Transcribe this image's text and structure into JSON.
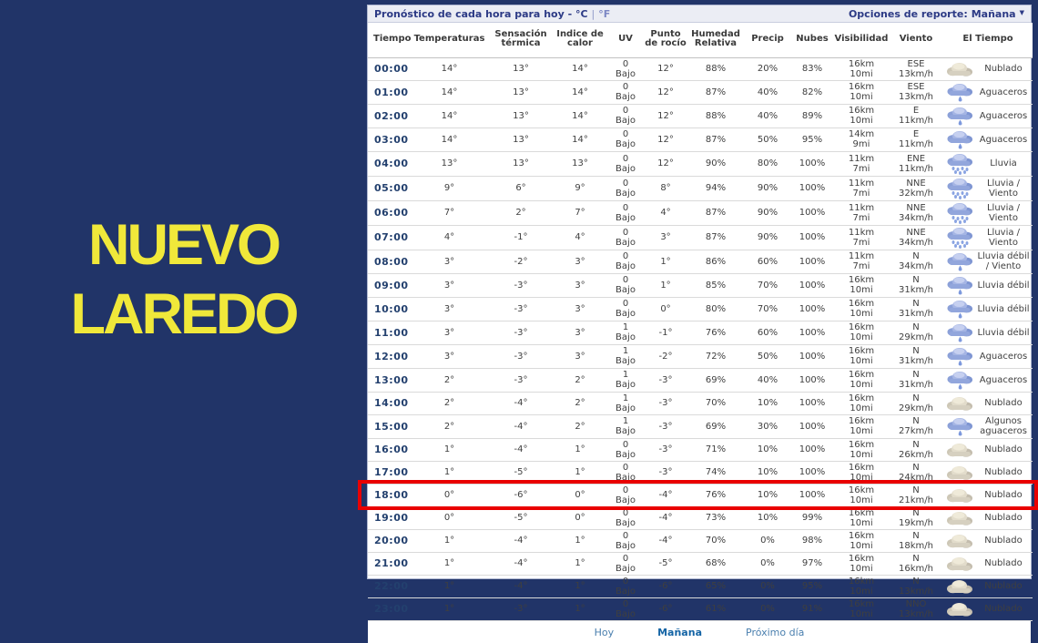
{
  "colors": {
    "background": "#213468",
    "city_text": "#f0e83a",
    "highlight": "#e90000"
  },
  "city": {
    "line1": "NUEVO",
    "line2": "LAREDO"
  },
  "panel": {
    "title": "Pronóstico de cada hora para hoy - °C",
    "unit_sep": "|",
    "unit_f": "°F",
    "report_options_label": "Opciones de reporte:",
    "report_options_value": "Mañana",
    "caret": "▼"
  },
  "table": {
    "columns": [
      "Tiempo",
      "Temperaturas",
      "Sensación térmica",
      "Indice de calor",
      "UV",
      "Punto de rocío",
      "Humedad Relativa",
      "Precip",
      "Nubes",
      "Visibilidad",
      "Viento",
      "El Tiempo"
    ],
    "rows": [
      {
        "time": "00:00",
        "temp": "14°",
        "feels": "13°",
        "heat_index": "14°",
        "uv": "0",
        "uv_level": "Bajo",
        "dew_point": "12°",
        "humidity": "88%",
        "precip": "20%",
        "clouds": "83%",
        "visibility_km": "16km",
        "visibility_mi": "10mi",
        "wind_dir": "ESE",
        "wind_speed": "13km/h",
        "icon": "cloudy-icon",
        "condition": "Nublado",
        "highlighted": false
      },
      {
        "time": "01:00",
        "temp": "14°",
        "feels": "13°",
        "heat_index": "14°",
        "uv": "0",
        "uv_level": "Bajo",
        "dew_point": "12°",
        "humidity": "87%",
        "precip": "40%",
        "clouds": "82%",
        "visibility_km": "16km",
        "visibility_mi": "10mi",
        "wind_dir": "ESE",
        "wind_speed": "13km/h",
        "icon": "rain-icon",
        "condition": "Aguaceros",
        "highlighted": false
      },
      {
        "time": "02:00",
        "temp": "14°",
        "feels": "13°",
        "heat_index": "14°",
        "uv": "0",
        "uv_level": "Bajo",
        "dew_point": "12°",
        "humidity": "88%",
        "precip": "40%",
        "clouds": "89%",
        "visibility_km": "16km",
        "visibility_mi": "10mi",
        "wind_dir": "E",
        "wind_speed": "11km/h",
        "icon": "rain-icon",
        "condition": "Aguaceros",
        "highlighted": false
      },
      {
        "time": "03:00",
        "temp": "14°",
        "feels": "13°",
        "heat_index": "14°",
        "uv": "0",
        "uv_level": "Bajo",
        "dew_point": "12°",
        "humidity": "87%",
        "precip": "50%",
        "clouds": "95%",
        "visibility_km": "14km",
        "visibility_mi": "9mi",
        "wind_dir": "E",
        "wind_speed": "11km/h",
        "icon": "rain-icon",
        "condition": "Aguaceros",
        "highlighted": false
      },
      {
        "time": "04:00",
        "temp": "13°",
        "feels": "13°",
        "heat_index": "13°",
        "uv": "0",
        "uv_level": "Bajo",
        "dew_point": "12°",
        "humidity": "90%",
        "precip": "80%",
        "clouds": "100%",
        "visibility_km": "11km",
        "visibility_mi": "7mi",
        "wind_dir": "ENE",
        "wind_speed": "11km/h",
        "icon": "heavy-rain-icon",
        "condition": "Lluvia",
        "highlighted": false
      },
      {
        "time": "05:00",
        "temp": "9°",
        "feels": "6°",
        "heat_index": "9°",
        "uv": "0",
        "uv_level": "Bajo",
        "dew_point": "8°",
        "humidity": "94%",
        "precip": "90%",
        "clouds": "100%",
        "visibility_km": "11km",
        "visibility_mi": "7mi",
        "wind_dir": "NNE",
        "wind_speed": "32km/h",
        "icon": "heavy-rain-icon",
        "condition": "Lluvia / Viento",
        "highlighted": false
      },
      {
        "time": "06:00",
        "temp": "7°",
        "feels": "2°",
        "heat_index": "7°",
        "uv": "0",
        "uv_level": "Bajo",
        "dew_point": "4°",
        "humidity": "87%",
        "precip": "90%",
        "clouds": "100%",
        "visibility_km": "11km",
        "visibility_mi": "7mi",
        "wind_dir": "NNE",
        "wind_speed": "34km/h",
        "icon": "heavy-rain-icon",
        "condition": "Lluvia / Viento",
        "highlighted": false
      },
      {
        "time": "07:00",
        "temp": "4°",
        "feels": "-1°",
        "heat_index": "4°",
        "uv": "0",
        "uv_level": "Bajo",
        "dew_point": "3°",
        "humidity": "87%",
        "precip": "90%",
        "clouds": "100%",
        "visibility_km": "11km",
        "visibility_mi": "7mi",
        "wind_dir": "NNE",
        "wind_speed": "34km/h",
        "icon": "heavy-rain-icon",
        "condition": "Lluvia / Viento",
        "highlighted": false
      },
      {
        "time": "08:00",
        "temp": "3°",
        "feels": "-2°",
        "heat_index": "3°",
        "uv": "0",
        "uv_level": "Bajo",
        "dew_point": "1°",
        "humidity": "86%",
        "precip": "60%",
        "clouds": "100%",
        "visibility_km": "11km",
        "visibility_mi": "7mi",
        "wind_dir": "N",
        "wind_speed": "34km/h",
        "icon": "rain-icon",
        "condition": "Lluvia débil / Viento",
        "highlighted": false
      },
      {
        "time": "09:00",
        "temp": "3°",
        "feels": "-3°",
        "heat_index": "3°",
        "uv": "0",
        "uv_level": "Bajo",
        "dew_point": "1°",
        "humidity": "85%",
        "precip": "70%",
        "clouds": "100%",
        "visibility_km": "16km",
        "visibility_mi": "10mi",
        "wind_dir": "N",
        "wind_speed": "31km/h",
        "icon": "rain-icon",
        "condition": "Lluvia débil",
        "highlighted": false
      },
      {
        "time": "10:00",
        "temp": "3°",
        "feels": "-3°",
        "heat_index": "3°",
        "uv": "0",
        "uv_level": "Bajo",
        "dew_point": "0°",
        "humidity": "80%",
        "precip": "70%",
        "clouds": "100%",
        "visibility_km": "16km",
        "visibility_mi": "10mi",
        "wind_dir": "N",
        "wind_speed": "31km/h",
        "icon": "rain-icon",
        "condition": "Lluvia débil",
        "highlighted": false
      },
      {
        "time": "11:00",
        "temp": "3°",
        "feels": "-3°",
        "heat_index": "3°",
        "uv": "1",
        "uv_level": "Bajo",
        "dew_point": "-1°",
        "humidity": "76%",
        "precip": "60%",
        "clouds": "100%",
        "visibility_km": "16km",
        "visibility_mi": "10mi",
        "wind_dir": "N",
        "wind_speed": "29km/h",
        "icon": "rain-icon",
        "condition": "Lluvia débil",
        "highlighted": false
      },
      {
        "time": "12:00",
        "temp": "3°",
        "feels": "-3°",
        "heat_index": "3°",
        "uv": "1",
        "uv_level": "Bajo",
        "dew_point": "-2°",
        "humidity": "72%",
        "precip": "50%",
        "clouds": "100%",
        "visibility_km": "16km",
        "visibility_mi": "10mi",
        "wind_dir": "N",
        "wind_speed": "31km/h",
        "icon": "rain-icon",
        "condition": "Aguaceros",
        "highlighted": false
      },
      {
        "time": "13:00",
        "temp": "2°",
        "feels": "-3°",
        "heat_index": "2°",
        "uv": "1",
        "uv_level": "Bajo",
        "dew_point": "-3°",
        "humidity": "69%",
        "precip": "40%",
        "clouds": "100%",
        "visibility_km": "16km",
        "visibility_mi": "10mi",
        "wind_dir": "N",
        "wind_speed": "31km/h",
        "icon": "rain-icon",
        "condition": "Aguaceros",
        "highlighted": false
      },
      {
        "time": "14:00",
        "temp": "2°",
        "feels": "-4°",
        "heat_index": "2°",
        "uv": "1",
        "uv_level": "Bajo",
        "dew_point": "-3°",
        "humidity": "70%",
        "precip": "10%",
        "clouds": "100%",
        "visibility_km": "16km",
        "visibility_mi": "10mi",
        "wind_dir": "N",
        "wind_speed": "29km/h",
        "icon": "cloudy-icon",
        "condition": "Nublado",
        "highlighted": false
      },
      {
        "time": "15:00",
        "temp": "2°",
        "feels": "-4°",
        "heat_index": "2°",
        "uv": "1",
        "uv_level": "Bajo",
        "dew_point": "-3°",
        "humidity": "69%",
        "precip": "30%",
        "clouds": "100%",
        "visibility_km": "16km",
        "visibility_mi": "10mi",
        "wind_dir": "N",
        "wind_speed": "27km/h",
        "icon": "rain-icon",
        "condition": "Algunos aguaceros",
        "highlighted": false
      },
      {
        "time": "16:00",
        "temp": "1°",
        "feels": "-4°",
        "heat_index": "1°",
        "uv": "0",
        "uv_level": "Bajo",
        "dew_point": "-3°",
        "humidity": "71%",
        "precip": "10%",
        "clouds": "100%",
        "visibility_km": "16km",
        "visibility_mi": "10mi",
        "wind_dir": "N",
        "wind_speed": "26km/h",
        "icon": "cloudy-icon",
        "condition": "Nublado",
        "highlighted": false
      },
      {
        "time": "17:00",
        "temp": "1°",
        "feels": "-5°",
        "heat_index": "1°",
        "uv": "0",
        "uv_level": "Bajo",
        "dew_point": "-3°",
        "humidity": "74%",
        "precip": "10%",
        "clouds": "100%",
        "visibility_km": "16km",
        "visibility_mi": "10mi",
        "wind_dir": "N",
        "wind_speed": "24km/h",
        "icon": "cloudy-icon",
        "condition": "Nublado",
        "highlighted": false
      },
      {
        "time": "18:00",
        "temp": "0°",
        "feels": "-6°",
        "heat_index": "0°",
        "uv": "0",
        "uv_level": "Bajo",
        "dew_point": "-4°",
        "humidity": "76%",
        "precip": "10%",
        "clouds": "100%",
        "visibility_km": "16km",
        "visibility_mi": "10mi",
        "wind_dir": "N",
        "wind_speed": "21km/h",
        "icon": "cloudy-icon",
        "condition": "Nublado",
        "highlighted": true
      },
      {
        "time": "19:00",
        "temp": "0°",
        "feels": "-5°",
        "heat_index": "0°",
        "uv": "0",
        "uv_level": "Bajo",
        "dew_point": "-4°",
        "humidity": "73%",
        "precip": "10%",
        "clouds": "99%",
        "visibility_km": "16km",
        "visibility_mi": "10mi",
        "wind_dir": "N",
        "wind_speed": "19km/h",
        "icon": "cloudy-icon",
        "condition": "Nublado",
        "highlighted": false
      },
      {
        "time": "20:00",
        "temp": "1°",
        "feels": "-4°",
        "heat_index": "1°",
        "uv": "0",
        "uv_level": "Bajo",
        "dew_point": "-4°",
        "humidity": "70%",
        "precip": "0%",
        "clouds": "98%",
        "visibility_km": "16km",
        "visibility_mi": "10mi",
        "wind_dir": "N",
        "wind_speed": "18km/h",
        "icon": "cloudy-icon",
        "condition": "Nublado",
        "highlighted": false
      },
      {
        "time": "21:00",
        "temp": "1°",
        "feels": "-4°",
        "heat_index": "1°",
        "uv": "0",
        "uv_level": "Bajo",
        "dew_point": "-5°",
        "humidity": "68%",
        "precip": "0%",
        "clouds": "97%",
        "visibility_km": "16km",
        "visibility_mi": "10mi",
        "wind_dir": "N",
        "wind_speed": "16km/h",
        "icon": "cloudy-icon",
        "condition": "Nublado",
        "highlighted": false
      },
      {
        "time": "22:00",
        "temp": "1°",
        "feels": "-4°",
        "heat_index": "1°",
        "uv": "0",
        "uv_level": "Bajo",
        "dew_point": "-6°",
        "humidity": "65%",
        "precip": "0%",
        "clouds": "95%",
        "visibility_km": "16km",
        "visibility_mi": "10mi",
        "wind_dir": "N",
        "wind_speed": "13km/h",
        "icon": "cloudy-icon",
        "condition": "Nublado",
        "highlighted": false
      },
      {
        "time": "23:00",
        "temp": "1°",
        "feels": "-3°",
        "heat_index": "1°",
        "uv": "0",
        "uv_level": "Bajo",
        "dew_point": "-6°",
        "humidity": "61%",
        "precip": "0%",
        "clouds": "91%",
        "visibility_km": "16km",
        "visibility_mi": "10mi",
        "wind_dir": "NNO",
        "wind_speed": "13km/h",
        "icon": "cloudy-icon",
        "condition": "Nublado",
        "highlighted": false
      }
    ]
  },
  "footer": {
    "tabs": [
      {
        "label": "Hoy",
        "active": false
      },
      {
        "label": "Mañana",
        "active": true
      },
      {
        "label": "Próximo día",
        "active": false
      }
    ]
  }
}
